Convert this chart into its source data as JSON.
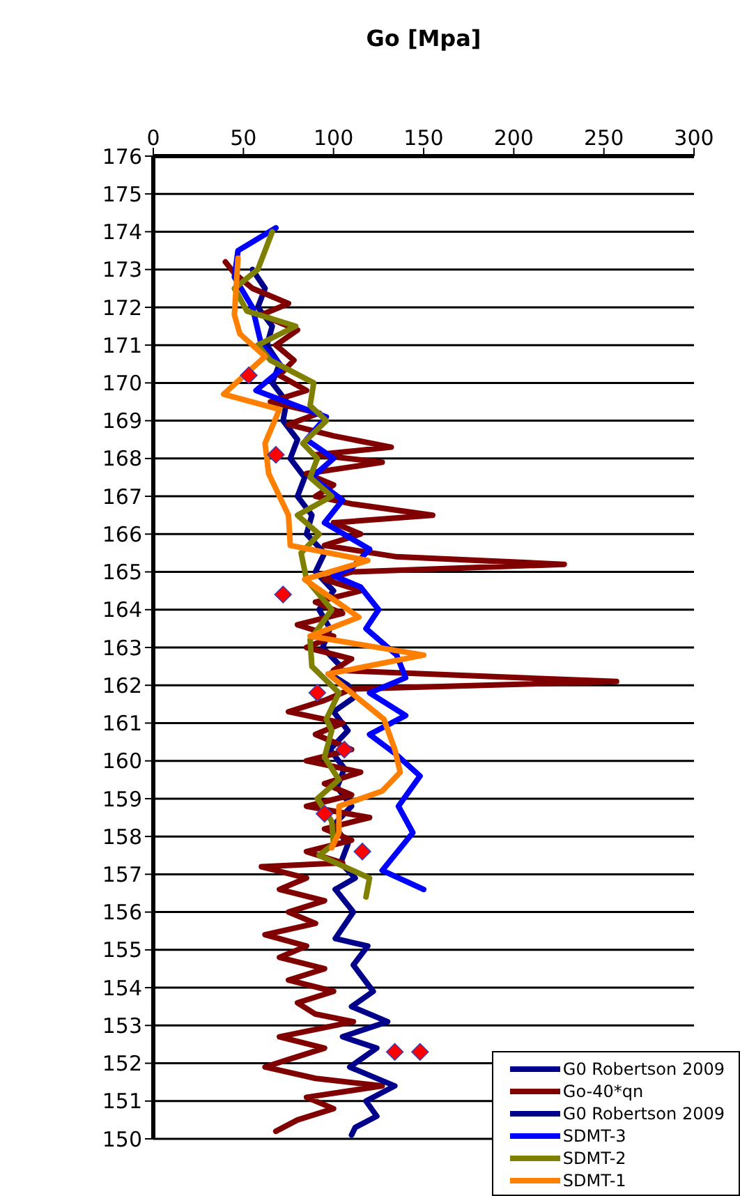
{
  "chart_data": {
    "type": "line",
    "xlabel": "Go [Mpa]",
    "xlim": [
      0,
      300
    ],
    "xticks": [
      0,
      50,
      100,
      150,
      200,
      250,
      300
    ],
    "ylim": [
      150,
      176
    ],
    "yticks": [
      150,
      151,
      152,
      153,
      154,
      155,
      156,
      157,
      158,
      159,
      160,
      161,
      162,
      163,
      164,
      165,
      166,
      167,
      168,
      169,
      170,
      171,
      172,
      173,
      174,
      175,
      176
    ],
    "grid": "y",
    "legend": "bottom right",
    "marker": "none",
    "line_style": "solid",
    "series": [
      {
        "name": "G0 Robertson 2009",
        "color": "#00008b",
        "x": [
          55,
          62,
          58,
          66,
          63,
          70,
          66,
          74,
          72,
          80,
          76,
          84,
          80,
          88,
          85,
          95,
          90,
          100,
          92,
          98,
          94,
          104,
          98,
          108,
          112,
          100,
          108,
          98,
          106,
          102,
          110,
          100,
          108,
          104,
          112,
          101
        ],
        "values": [
          173.0,
          172.5,
          172.0,
          171.5,
          171.0,
          170.5,
          170.0,
          169.5,
          169.0,
          168.5,
          168.0,
          167.5,
          167.0,
          166.5,
          166.0,
          165.5,
          165.0,
          164.5,
          164.0,
          163.5,
          163.0,
          162.5,
          162.3,
          162.0,
          161.7,
          161.3,
          160.8,
          160.3,
          159.8,
          159.3,
          158.8,
          158.3,
          157.8,
          157.3,
          156.9,
          156.6
        ]
      },
      {
        "name": "Go-40*qn",
        "color": "#800000",
        "x": [
          40,
          45,
          55,
          75,
          60,
          80,
          68,
          78,
          70,
          85,
          65,
          92,
          75,
          100,
          132,
          90,
          127,
          85,
          100,
          90,
          110,
          155,
          100,
          115,
          95,
          135,
          228,
          110,
          95,
          115,
          90,
          105,
          80,
          100,
          85,
          110,
          100,
          257,
          110,
          95,
          75,
          105,
          90,
          110,
          85,
          115,
          95,
          110,
          85,
          120,
          95,
          110,
          85,
          105,
          60,
          85,
          70,
          95,
          75,
          90,
          62,
          85,
          70,
          95,
          75,
          100,
          80,
          90,
          111,
          70,
          95,
          75,
          62,
          90,
          127,
          85,
          100,
          80,
          68
        ],
        "values": [
          173.2,
          172.9,
          172.5,
          172.1,
          171.8,
          171.4,
          171.0,
          170.6,
          170.2,
          169.8,
          169.5,
          169.2,
          168.9,
          168.6,
          168.3,
          168.1,
          167.9,
          167.6,
          167.3,
          167.0,
          166.8,
          166.5,
          166.3,
          166.0,
          165.7,
          165.4,
          165.2,
          165.0,
          164.8,
          164.5,
          164.2,
          163.9,
          163.6,
          163.3,
          163.0,
          162.7,
          162.4,
          162.1,
          161.9,
          161.6,
          161.3,
          161.0,
          160.7,
          160.3,
          160.0,
          159.7,
          159.4,
          159.1,
          158.8,
          158.5,
          158.2,
          157.9,
          157.6,
          157.3,
          157.2,
          156.9,
          156.6,
          156.3,
          156.0,
          155.7,
          155.4,
          155.1,
          154.8,
          154.5,
          154.2,
          153.9,
          153.6,
          153.3,
          153.1,
          152.7,
          152.4,
          152.1,
          151.9,
          151.6,
          151.4,
          151.1,
          150.8,
          150.5,
          150.2
        ]
      },
      {
        "name": "G0 Robertson 2009",
        "color": "#00008b",
        "x": [
          101,
          111,
          101,
          119,
          111,
          122,
          110,
          130,
          105,
          124,
          109,
          134,
          118,
          124,
          112,
          110
        ],
        "values": [
          156.6,
          156.0,
          155.3,
          155.1,
          154.6,
          153.9,
          153.5,
          153.1,
          152.7,
          152.4,
          151.9,
          151.4,
          151.0,
          150.6,
          150.3,
          150.1
        ]
      },
      {
        "name": "SDMT-3",
        "color": "#0000ff",
        "x": [
          68,
          47,
          45,
          55,
          60,
          72,
          57,
          96,
          85,
          100,
          88,
          105,
          95,
          120,
          110,
          100,
          115,
          125,
          118,
          135,
          140,
          120,
          140,
          120,
          134,
          148,
          136,
          144,
          127,
          150
        ],
        "values": [
          174.1,
          173.5,
          172.8,
          172.0,
          171.0,
          170.4,
          169.8,
          169.1,
          168.5,
          168.0,
          167.5,
          166.9,
          166.3,
          165.6,
          165.1,
          164.9,
          164.6,
          164.0,
          163.5,
          162.8,
          162.2,
          161.8,
          161.2,
          160.7,
          160.2,
          159.6,
          158.8,
          158.1,
          157.1,
          156.6
        ]
      },
      {
        "name": "SDMT-2",
        "color": "#808000",
        "x": [
          66,
          58,
          45,
          52,
          79,
          58,
          65,
          89,
          87,
          96,
          83,
          91,
          87,
          99,
          80,
          92,
          82,
          85,
          99,
          87,
          88,
          103,
          96,
          99,
          95,
          103,
          91,
          99,
          100,
          92,
          120,
          118
        ],
        "values": [
          174.0,
          173.0,
          172.5,
          171.9,
          171.5,
          171.0,
          170.6,
          170.0,
          169.4,
          169.0,
          168.4,
          168.0,
          167.5,
          167.0,
          166.5,
          166.0,
          165.5,
          164.8,
          164.0,
          163.2,
          162.5,
          161.8,
          161.1,
          160.8,
          160.1,
          159.5,
          159.0,
          158.4,
          157.8,
          157.5,
          156.9,
          156.4
        ]
      },
      {
        "name": "SDMT-1",
        "color": "#ff7f00",
        "x": [
          47,
          45,
          48,
          62,
          39,
          70,
          62,
          64,
          75,
          76,
          119,
          84,
          114,
          87,
          150,
          97,
          128,
          134,
          137,
          127,
          103,
          103,
          99
        ],
        "values": [
          173.3,
          171.8,
          171.3,
          170.7,
          169.7,
          169.3,
          168.4,
          167.6,
          166.5,
          165.7,
          165.3,
          164.8,
          163.8,
          163.3,
          162.8,
          162.3,
          161.1,
          160.3,
          159.7,
          159.2,
          158.8,
          158.1,
          157.7
        ]
      },
      {
        "type": "scatter",
        "color": "#ff0000",
        "marker": "diamond",
        "x": [
          53,
          68,
          72,
          91,
          106,
          95,
          116,
          134,
          148
        ],
        "values": [
          170.2,
          168.1,
          164.4,
          161.8,
          160.3,
          158.6,
          157.6,
          152.3,
          152.3
        ]
      }
    ]
  }
}
